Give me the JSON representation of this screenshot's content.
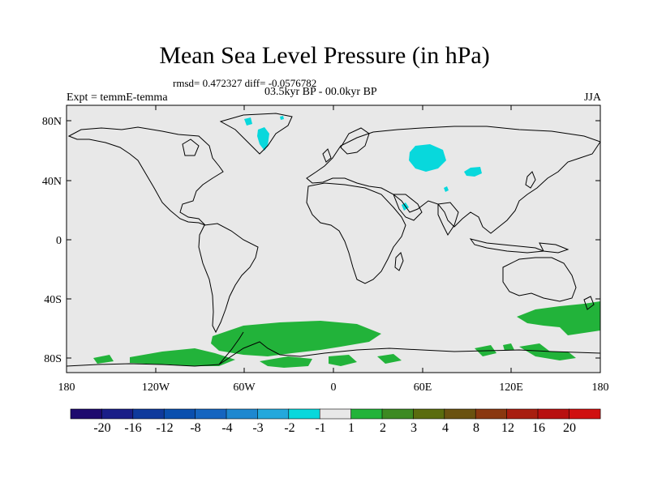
{
  "header": {
    "title": "Mean Sea Level Pressure (in hPa)",
    "stats": "rmsd= 0.472327 diff= -0.0576782",
    "period": "03.5kyr BP - 00.0kyr BP",
    "experiment": "Expt = temmE-temma",
    "season": "JJA"
  },
  "map": {
    "background_color": "#e8e8e8",
    "y_ticks": [
      "80N",
      "40N",
      "0",
      "40S",
      "80S"
    ],
    "x_ticks": [
      "180",
      "120W",
      "60W",
      "0",
      "60E",
      "120E",
      "180"
    ]
  },
  "colorbar": {
    "labels": [
      "-20",
      "-16",
      "-12",
      "-8",
      "-4",
      "-3",
      "-2",
      "-1",
      "1",
      "2",
      "3",
      "4",
      "8",
      "12",
      "16",
      "20"
    ],
    "colors": [
      "#1e0a6e",
      "#1a1e88",
      "#0f3a9c",
      "#0a4fae",
      "#1565c0",
      "#1e88d0",
      "#24a8dc",
      "#08d8dc",
      "#e8e8e8",
      "#22b33a",
      "#3d8a22",
      "#5a6c0e",
      "#6a5210",
      "#8a3810",
      "#a81e10",
      "#b81010",
      "#d01010"
    ]
  },
  "legend_colors": {
    "positive_1_2": "#22b33a",
    "negative_1_2": "#08d8dc"
  }
}
